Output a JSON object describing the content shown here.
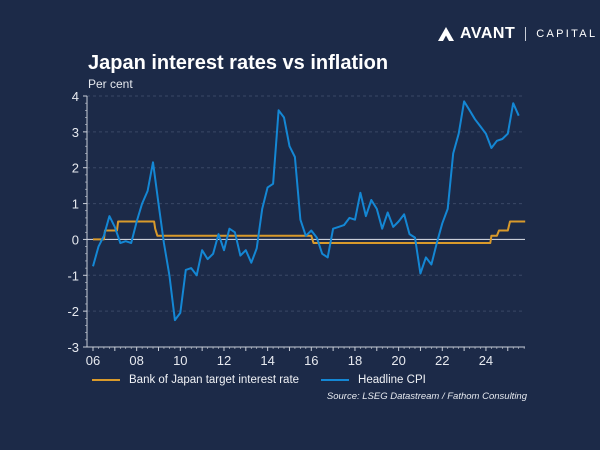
{
  "brand": {
    "name": "AVANT",
    "sub": "CAPITAL",
    "logo_icon": "avant-logo-icon"
  },
  "colors": {
    "background": "#1c2a48",
    "boj": "#d99a2b",
    "cpi": "#1487d4",
    "axis": "#c9ced8",
    "grid": "#3a4866"
  },
  "chart_data": {
    "type": "line",
    "title": "Japan interest rates vs inflation",
    "subtitle": "Per cent",
    "xlabel": "",
    "ylabel": "Per cent",
    "xlim": [
      2006,
      2025.8
    ],
    "ylim": [
      -3,
      4
    ],
    "grid": true,
    "yticks": [
      -3,
      -2,
      -1,
      0,
      1,
      2,
      3,
      4
    ],
    "xticks": [
      2006,
      2008,
      2010,
      2012,
      2014,
      2016,
      2018,
      2020,
      2022,
      2024
    ],
    "xtick_labels": [
      "06",
      "08",
      "10",
      "12",
      "14",
      "16",
      "18",
      "20",
      "22",
      "24"
    ],
    "legend_position": "bottom",
    "source": "Source: LSEG Datastream / Fathom Consulting",
    "series": [
      {
        "name": "Bank of Japan target interest rate",
        "color": "#d99a2b",
        "points": [
          [
            2006.0,
            0
          ],
          [
            2006.5,
            0
          ],
          [
            2006.55,
            0.25
          ],
          [
            2007.1,
            0.25
          ],
          [
            2007.15,
            0.5
          ],
          [
            2008.8,
            0.5
          ],
          [
            2008.85,
            0.3
          ],
          [
            2008.95,
            0.1
          ],
          [
            2016.0,
            0.1
          ],
          [
            2016.1,
            -0.1
          ],
          [
            2024.2,
            -0.1
          ],
          [
            2024.25,
            0.1
          ],
          [
            2024.5,
            0.1
          ],
          [
            2024.6,
            0.25
          ],
          [
            2025.0,
            0.25
          ],
          [
            2025.1,
            0.5
          ],
          [
            2025.8,
            0.5
          ]
        ]
      },
      {
        "name": "Headline CPI",
        "color": "#1487d4",
        "points": [
          [
            2006.0,
            -0.75
          ],
          [
            2006.25,
            -0.2
          ],
          [
            2006.5,
            0.1
          ],
          [
            2006.75,
            0.65
          ],
          [
            2007.0,
            0.35
          ],
          [
            2007.25,
            -0.1
          ],
          [
            2007.5,
            -0.05
          ],
          [
            2007.75,
            -0.1
          ],
          [
            2008.0,
            0.5
          ],
          [
            2008.25,
            1.0
          ],
          [
            2008.5,
            1.35
          ],
          [
            2008.75,
            2.15
          ],
          [
            2009.0,
            1.0
          ],
          [
            2009.25,
            -0.1
          ],
          [
            2009.5,
            -1.0
          ],
          [
            2009.75,
            -2.25
          ],
          [
            2010.0,
            -2.05
          ],
          [
            2010.25,
            -0.85
          ],
          [
            2010.5,
            -0.8
          ],
          [
            2010.75,
            -1.0
          ],
          [
            2011.0,
            -0.3
          ],
          [
            2011.25,
            -0.55
          ],
          [
            2011.5,
            -0.4
          ],
          [
            2011.75,
            0.15
          ],
          [
            2012.0,
            -0.3
          ],
          [
            2012.25,
            0.3
          ],
          [
            2012.5,
            0.2
          ],
          [
            2012.75,
            -0.45
          ],
          [
            2013.0,
            -0.3
          ],
          [
            2013.25,
            -0.65
          ],
          [
            2013.5,
            -0.25
          ],
          [
            2013.75,
            0.85
          ],
          [
            2014.0,
            1.45
          ],
          [
            2014.25,
            1.55
          ],
          [
            2014.5,
            3.6
          ],
          [
            2014.75,
            3.4
          ],
          [
            2015.0,
            2.6
          ],
          [
            2015.25,
            2.3
          ],
          [
            2015.5,
            0.55
          ],
          [
            2015.75,
            0.1
          ],
          [
            2016.0,
            0.25
          ],
          [
            2016.25,
            0.05
          ],
          [
            2016.5,
            -0.4
          ],
          [
            2016.75,
            -0.5
          ],
          [
            2017.0,
            0.3
          ],
          [
            2017.25,
            0.35
          ],
          [
            2017.5,
            0.4
          ],
          [
            2017.75,
            0.6
          ],
          [
            2018.0,
            0.55
          ],
          [
            2018.25,
            1.3
          ],
          [
            2018.5,
            0.65
          ],
          [
            2018.75,
            1.1
          ],
          [
            2019.0,
            0.85
          ],
          [
            2019.25,
            0.3
          ],
          [
            2019.5,
            0.75
          ],
          [
            2019.75,
            0.35
          ],
          [
            2020.0,
            0.5
          ],
          [
            2020.25,
            0.7
          ],
          [
            2020.5,
            0.15
          ],
          [
            2020.75,
            0.05
          ],
          [
            2021.0,
            -0.95
          ],
          [
            2021.25,
            -0.5
          ],
          [
            2021.5,
            -0.7
          ],
          [
            2021.75,
            -0.1
          ],
          [
            2022.0,
            0.45
          ],
          [
            2022.25,
            0.85
          ],
          [
            2022.5,
            2.4
          ],
          [
            2022.75,
            2.95
          ],
          [
            2023.0,
            3.85
          ],
          [
            2023.25,
            3.6
          ],
          [
            2023.5,
            3.35
          ],
          [
            2023.75,
            3.15
          ],
          [
            2024.0,
            2.95
          ],
          [
            2024.25,
            2.55
          ],
          [
            2024.5,
            2.75
          ],
          [
            2024.75,
            2.8
          ],
          [
            2025.0,
            2.95
          ],
          [
            2025.25,
            3.8
          ],
          [
            2025.5,
            3.45
          ]
        ]
      }
    ]
  }
}
